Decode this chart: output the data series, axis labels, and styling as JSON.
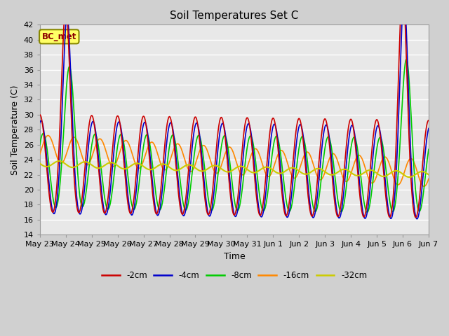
{
  "title": "Soil Temperatures Set C",
  "xlabel": "Time",
  "ylabel": "Soil Temperature (C)",
  "ylim": [
    14,
    42
  ],
  "yticks": [
    14,
    16,
    18,
    20,
    22,
    24,
    26,
    28,
    30,
    32,
    34,
    36,
    38,
    40,
    42
  ],
  "annotation": "BC_met",
  "series_labels": [
    "-2cm",
    "-4cm",
    "-8cm",
    "-16cm",
    "-32cm"
  ],
  "series_colors": [
    "#cc0000",
    "#0000cc",
    "#00cc00",
    "#ff8800",
    "#cccc00"
  ],
  "fig_bg": "#d0d0d0",
  "ax_bg": "#e8e8e8",
  "grid_color": "#ffffff",
  "date_labels": [
    "May 23",
    "May 24",
    "May 25",
    "May 26",
    "May 27",
    "May 28",
    "May 29",
    "May 30",
    "May 31",
    "Jun 1",
    "Jun 2",
    "Jun 3",
    "Jun 4",
    "Jun 5",
    "Jun 6",
    "Jun 7"
  ]
}
